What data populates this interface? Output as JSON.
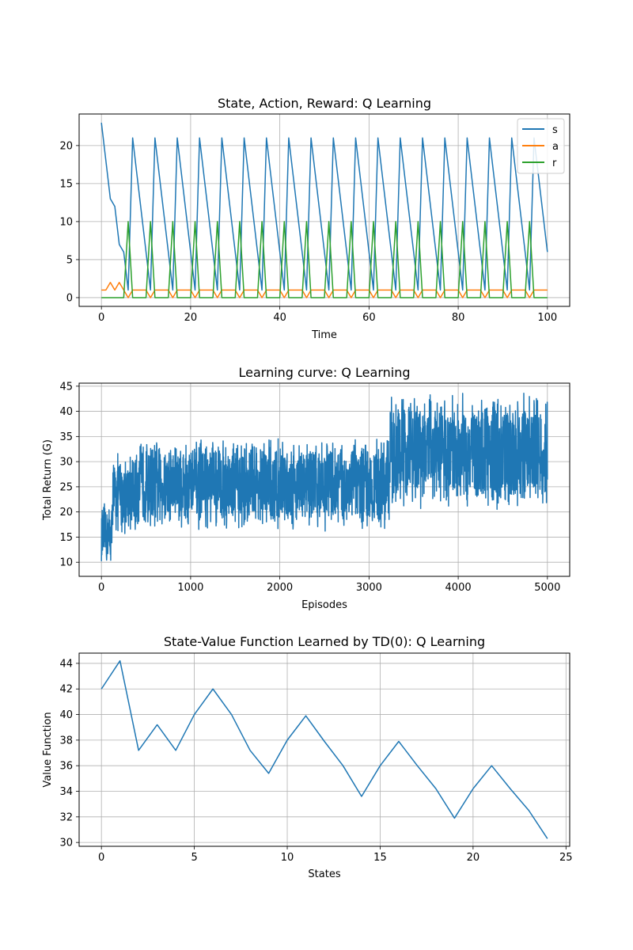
{
  "chart_data": [
    {
      "type": "line",
      "title": "State, Action, Reward: Q Learning",
      "xlabel": "Time",
      "ylabel": "",
      "xlim": [
        -5,
        105
      ],
      "ylim": [
        -1.15,
        24.15
      ],
      "xticks": [
        0,
        20,
        40,
        60,
        80,
        100
      ],
      "yticks": [
        0,
        5,
        10,
        15,
        20
      ],
      "grid": true,
      "legend_position": "top-right",
      "x": [
        0,
        1,
        2,
        3,
        4,
        5,
        6,
        7,
        8,
        9,
        10,
        11,
        12,
        13,
        14,
        15,
        16,
        17,
        18,
        19,
        20,
        21,
        22,
        23,
        24,
        25,
        26,
        27,
        28,
        29,
        30,
        31,
        32,
        33,
        34,
        35,
        36,
        37,
        38,
        39,
        40,
        41,
        42,
        43,
        44,
        45,
        46,
        47,
        48,
        49,
        50,
        51,
        52,
        53,
        54,
        55,
        56,
        57,
        58,
        59,
        60,
        61,
        62,
        63,
        64,
        65,
        66,
        67,
        68,
        69,
        70,
        71,
        72,
        73,
        74,
        75,
        76,
        77,
        78,
        79,
        80,
        81,
        82,
        83,
        84,
        85,
        86,
        87,
        88,
        89,
        90,
        91,
        92,
        93,
        94,
        95,
        96,
        97,
        98,
        99,
        100
      ],
      "series": [
        {
          "name": "s",
          "color": "#1f77b4",
          "values": [
            23,
            18,
            13,
            12,
            7,
            6,
            1,
            21,
            16,
            11,
            6,
            1,
            21,
            16,
            11,
            6,
            1,
            21,
            16,
            11,
            6,
            1,
            21,
            16,
            11,
            6,
            1,
            21,
            16,
            11,
            6,
            1,
            21,
            16,
            11,
            6,
            1,
            21,
            16,
            11,
            6,
            1,
            21,
            16,
            11,
            6,
            1,
            21,
            16,
            11,
            6,
            1,
            21,
            16,
            11,
            6,
            1,
            21,
            16,
            11,
            6,
            1,
            21,
            16,
            11,
            6,
            1,
            21,
            16,
            11,
            6,
            1,
            21,
            16,
            11,
            6,
            1,
            21,
            16,
            11,
            6,
            1,
            21,
            16,
            11,
            6,
            1,
            21,
            16,
            11,
            6,
            1,
            21,
            16,
            11,
            6,
            1,
            21,
            16,
            11,
            6
          ]
        },
        {
          "name": "a",
          "color": "#ff7f0e",
          "values": [
            1,
            1,
            2,
            1,
            2,
            1,
            0,
            1,
            1,
            1,
            1,
            0,
            1,
            1,
            1,
            1,
            0,
            1,
            1,
            1,
            1,
            0,
            1,
            1,
            1,
            1,
            0,
            1,
            1,
            1,
            1,
            0,
            1,
            1,
            1,
            1,
            0,
            1,
            1,
            1,
            1,
            0,
            1,
            1,
            1,
            1,
            0,
            1,
            1,
            1,
            1,
            0,
            1,
            1,
            1,
            1,
            0,
            1,
            1,
            1,
            1,
            0,
            1,
            1,
            1,
            1,
            0,
            1,
            1,
            1,
            1,
            0,
            1,
            1,
            1,
            1,
            0,
            1,
            1,
            1,
            1,
            0,
            1,
            1,
            1,
            1,
            0,
            1,
            1,
            1,
            1,
            0,
            1,
            1,
            1,
            1,
            0,
            1,
            1,
            1,
            1
          ]
        },
        {
          "name": "r",
          "color": "#2ca02c",
          "values": [
            0,
            0,
            0,
            0,
            0,
            0,
            10,
            0,
            0,
            0,
            0,
            10,
            0,
            0,
            0,
            0,
            10,
            0,
            0,
            0,
            0,
            10,
            0,
            0,
            0,
            0,
            10,
            0,
            0,
            0,
            0,
            10,
            0,
            0,
            0,
            0,
            10,
            0,
            0,
            0,
            0,
            10,
            0,
            0,
            0,
            0,
            10,
            0,
            0,
            0,
            0,
            10,
            0,
            0,
            0,
            0,
            10,
            0,
            0,
            0,
            0,
            10,
            0,
            0,
            0,
            0,
            10,
            0,
            0,
            0,
            0,
            10,
            0,
            0,
            0,
            0,
            10,
            0,
            0,
            0,
            0,
            10,
            0,
            0,
            0,
            0,
            10,
            0,
            0,
            0,
            0,
            10,
            0,
            0,
            0,
            0,
            10,
            0,
            0,
            0,
            0
          ]
        }
      ]
    },
    {
      "type": "line",
      "title": "Learning curve: Q Learning",
      "xlabel": "Episodes",
      "ylabel": "Total Return (G)",
      "xlim": [
        -250,
        5250
      ],
      "ylim": [
        7.2,
        45.6
      ],
      "xticks": [
        0,
        1000,
        2000,
        3000,
        4000,
        5000
      ],
      "yticks": [
        10,
        15,
        20,
        25,
        30,
        35,
        40,
        45
      ],
      "grid": true,
      "series": [
        {
          "name": "",
          "color": "#1f77b4",
          "x_range": [
            0,
            5000
          ],
          "segments": [
            {
              "from": 0,
              "to": 120,
              "min": 8.5,
              "max": 22
            },
            {
              "from": 120,
              "to": 400,
              "min": 15,
              "max": 32
            },
            {
              "from": 400,
              "to": 3230,
              "min": 16,
              "max": 35
            },
            {
              "from": 3230,
              "to": 5000,
              "min": 20,
              "max": 44
            }
          ]
        }
      ]
    },
    {
      "type": "line",
      "title": "State-Value Function Learned by TD(0): Q Learning",
      "xlabel": "States",
      "ylabel": "Value Function",
      "xlim": [
        -1.2,
        25.2
      ],
      "ylim": [
        29.7,
        44.8
      ],
      "xticks": [
        0,
        5,
        10,
        15,
        20,
        25
      ],
      "yticks": [
        30,
        32,
        34,
        36,
        38,
        40,
        42,
        44
      ],
      "grid": true,
      "x": [
        0,
        1,
        2,
        3,
        4,
        5,
        6,
        7,
        8,
        9,
        10,
        11,
        12,
        13,
        14,
        15,
        16,
        17,
        18,
        19,
        20,
        21,
        22,
        23,
        24
      ],
      "series": [
        {
          "name": "",
          "color": "#1f77b4",
          "values": [
            42.0,
            44.2,
            37.2,
            39.2,
            37.2,
            40.0,
            42.0,
            40.0,
            37.2,
            35.4,
            38.0,
            39.9,
            37.9,
            36.0,
            33.6,
            36.0,
            37.9,
            36.0,
            34.2,
            31.9,
            34.2,
            36.0,
            34.2,
            32.5,
            30.3
          ]
        }
      ]
    }
  ]
}
